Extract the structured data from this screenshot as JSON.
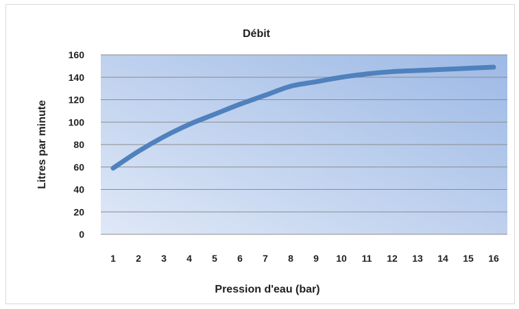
{
  "chart_data": {
    "type": "line",
    "title": "Débit",
    "xlabel": "Pression d'eau (bar)",
    "ylabel": "Litres par minute",
    "x": [
      1,
      2,
      3,
      4,
      5,
      6,
      7,
      8,
      9,
      10,
      11,
      12,
      13,
      14,
      15,
      16
    ],
    "series": [
      {
        "values": [
          59,
          74,
          87,
          98,
          107,
          116,
          124,
          132,
          136,
          140,
          143,
          145,
          146,
          147,
          148,
          149
        ]
      }
    ],
    "ylim": [
      0,
      160
    ],
    "yticks": [
      0,
      20,
      40,
      60,
      80,
      100,
      120,
      140,
      160
    ],
    "grid": true,
    "legend": "none",
    "colors": {
      "line": "#4f81bd",
      "plot_bg_light": "#dfe8f7",
      "plot_bg_dark": "#9db9e5",
      "gridline": "#8c8c8c"
    }
  }
}
